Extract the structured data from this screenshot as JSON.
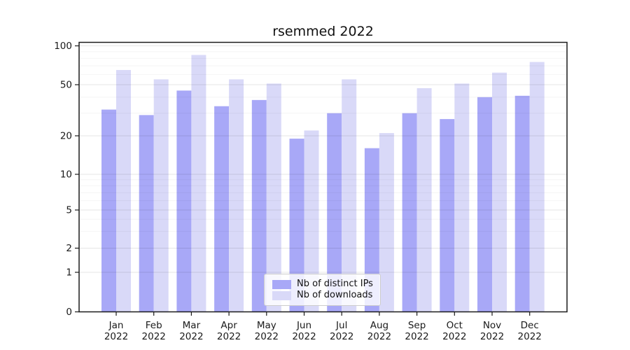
{
  "figure": {
    "title": "rsemmed 2022",
    "background": "#ffffff"
  },
  "chart_data": {
    "type": "bar",
    "title": "rsemmed 2022",
    "categories": [
      "Jan",
      "Feb",
      "Mar",
      "Apr",
      "May",
      "Jun",
      "Jul",
      "Aug",
      "Sep",
      "Oct",
      "Nov",
      "Dec"
    ],
    "category_year": "2022",
    "series": [
      {
        "name": "Nb of distinct IPs",
        "color": "#a8a8f7",
        "values": [
          32,
          29,
          45,
          34,
          38,
          19,
          30,
          16,
          30,
          27,
          40,
          41
        ]
      },
      {
        "name": "Nb of downloads",
        "color": "#d9d9f8",
        "values": [
          65,
          55,
          85,
          55,
          51,
          22,
          55,
          21,
          47,
          51,
          62,
          75
        ]
      }
    ],
    "y_axis": {
      "scale": "symlog-like",
      "ticks": [
        0,
        1,
        2,
        5,
        10,
        20,
        50,
        100
      ],
      "minor_ticks": [
        3,
        4,
        6,
        7,
        8,
        9,
        30,
        40,
        60,
        70,
        80,
        90
      ],
      "ylim": [
        0,
        100
      ]
    },
    "x_axis": {
      "tick_label_lines": 2
    },
    "legend": {
      "position": "lower-center",
      "entries": [
        "Nb of distinct IPs",
        "Nb of downloads"
      ]
    },
    "grid": true
  },
  "colors": {
    "bar_dark": "#a8a8f7",
    "bar_light": "#d9d9f8",
    "axis": "#1a1a1a",
    "tick_label": "#1a1a1a",
    "grid_major": "rgba(0,0,0,0.10)",
    "grid_minor": "rgba(0,0,0,0.045)",
    "legend_border": "#cccccc",
    "legend_bg": "rgba(255,255,255,0.8)"
  }
}
